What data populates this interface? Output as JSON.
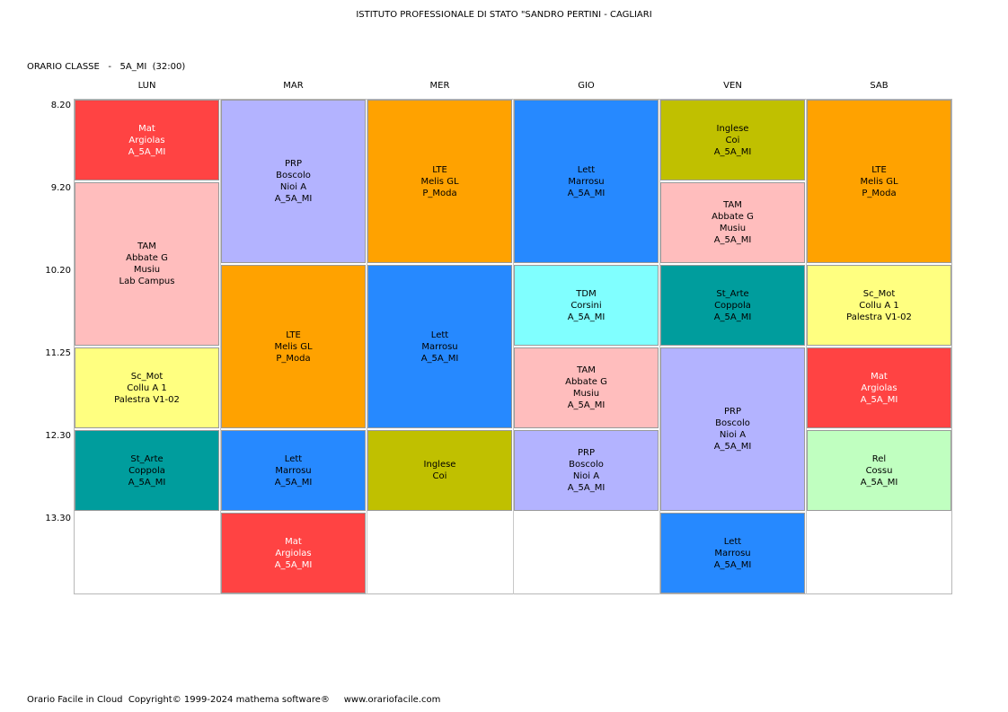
{
  "header": {
    "title": "ISTITUTO PROFESSIONALE DI STATO \"SANDRO PERTINI - CAGLIARI"
  },
  "subtitle": "ORARIO CLASSE   -   5A_MI  (32:00)",
  "days": [
    "LUN",
    "MAR",
    "MER",
    "GIO",
    "VEN",
    "SAB"
  ],
  "times": [
    "8.20",
    "9.20",
    "10.20",
    "11.25",
    "12.30",
    "13.30"
  ],
  "colors": {
    "red": "#ff4343",
    "lavender": "#b3b3ff",
    "orange": "#ffa200",
    "blue": "#2689ff",
    "olive": "#c0c000",
    "pink": "#ffbdbd",
    "cyan": "#80ffff",
    "teal": "#009d9d",
    "yellow": "#ffff80",
    "green": "#c0ffc0"
  },
  "lessons": [
    {
      "day": 0,
      "start": 0,
      "span": 1,
      "color": "red",
      "light": true,
      "lines": [
        "Mat",
        "Argiolas",
        "A_5A_MI"
      ]
    },
    {
      "day": 0,
      "start": 1,
      "span": 2,
      "color": "pink",
      "light": false,
      "lines": [
        "TAM",
        "Abbate G",
        "Musiu",
        "Lab Campus"
      ]
    },
    {
      "day": 0,
      "start": 3,
      "span": 1,
      "color": "yellow",
      "light": false,
      "lines": [
        "Sc_Mot",
        "Collu A 1",
        "Palestra V1-02"
      ]
    },
    {
      "day": 0,
      "start": 4,
      "span": 1,
      "color": "teal",
      "light": false,
      "lines": [
        "St_Arte",
        "Coppola",
        "A_5A_MI"
      ]
    },
    {
      "day": 1,
      "start": 0,
      "span": 2,
      "color": "lavender",
      "light": false,
      "lines": [
        "PRP",
        "Boscolo",
        "Nioi A",
        "A_5A_MI"
      ]
    },
    {
      "day": 1,
      "start": 2,
      "span": 2,
      "color": "orange",
      "light": false,
      "lines": [
        "LTE",
        "Melis GL",
        "P_Moda"
      ]
    },
    {
      "day": 1,
      "start": 4,
      "span": 1,
      "color": "blue",
      "light": false,
      "lines": [
        "Lett",
        "Marrosu",
        "A_5A_MI"
      ]
    },
    {
      "day": 1,
      "start": 5,
      "span": 1,
      "color": "red",
      "light": true,
      "lines": [
        "Mat",
        "Argiolas",
        "A_5A_MI"
      ]
    },
    {
      "day": 2,
      "start": 0,
      "span": 2,
      "color": "orange",
      "light": false,
      "lines": [
        "LTE",
        "Melis GL",
        "P_Moda"
      ]
    },
    {
      "day": 2,
      "start": 2,
      "span": 2,
      "color": "blue",
      "light": false,
      "lines": [
        "Lett",
        "Marrosu",
        "A_5A_MI"
      ]
    },
    {
      "day": 2,
      "start": 4,
      "span": 1,
      "color": "olive",
      "light": false,
      "lines": [
        "Inglese",
        "Coi"
      ]
    },
    {
      "day": 3,
      "start": 0,
      "span": 2,
      "color": "blue",
      "light": false,
      "lines": [
        "Lett",
        "Marrosu",
        "A_5A_MI"
      ]
    },
    {
      "day": 3,
      "start": 2,
      "span": 1,
      "color": "cyan",
      "light": false,
      "lines": [
        "TDM",
        "Corsini",
        "A_5A_MI"
      ]
    },
    {
      "day": 3,
      "start": 3,
      "span": 1,
      "color": "pink",
      "light": false,
      "lines": [
        "TAM",
        "Abbate G",
        "Musiu",
        "A_5A_MI"
      ]
    },
    {
      "day": 3,
      "start": 4,
      "span": 1,
      "color": "lavender",
      "light": false,
      "lines": [
        "PRP",
        "Boscolo",
        "Nioi A",
        "A_5A_MI"
      ]
    },
    {
      "day": 4,
      "start": 0,
      "span": 1,
      "color": "olive",
      "light": false,
      "lines": [
        "Inglese",
        "Coi",
        "A_5A_MI"
      ]
    },
    {
      "day": 4,
      "start": 1,
      "span": 1,
      "color": "pink",
      "light": false,
      "lines": [
        "TAM",
        "Abbate G",
        "Musiu",
        "A_5A_MI"
      ]
    },
    {
      "day": 4,
      "start": 2,
      "span": 1,
      "color": "teal",
      "light": false,
      "lines": [
        "St_Arte",
        "Coppola",
        "A_5A_MI"
      ]
    },
    {
      "day": 4,
      "start": 3,
      "span": 2,
      "color": "lavender",
      "light": false,
      "lines": [
        "PRP",
        "Boscolo",
        "Nioi A",
        "A_5A_MI"
      ]
    },
    {
      "day": 4,
      "start": 5,
      "span": 1,
      "color": "blue",
      "light": false,
      "lines": [
        "Lett",
        "Marrosu",
        "A_5A_MI"
      ]
    },
    {
      "day": 5,
      "start": 0,
      "span": 2,
      "color": "orange",
      "light": false,
      "lines": [
        "LTE",
        "Melis GL",
        "P_Moda"
      ]
    },
    {
      "day": 5,
      "start": 2,
      "span": 1,
      "color": "yellow",
      "light": false,
      "lines": [
        "Sc_Mot",
        "Collu A 1",
        "Palestra V1-02"
      ]
    },
    {
      "day": 5,
      "start": 3,
      "span": 1,
      "color": "red",
      "light": true,
      "lines": [
        "Mat",
        "Argiolas",
        "A_5A_MI"
      ]
    },
    {
      "day": 5,
      "start": 4,
      "span": 1,
      "color": "green",
      "light": false,
      "lines": [
        "Rel",
        "Cossu",
        "A_5A_MI"
      ]
    }
  ],
  "footer": "Orario Facile in Cloud  Copyright© 1999-2024 mathema software®     www.orariofacile.com"
}
